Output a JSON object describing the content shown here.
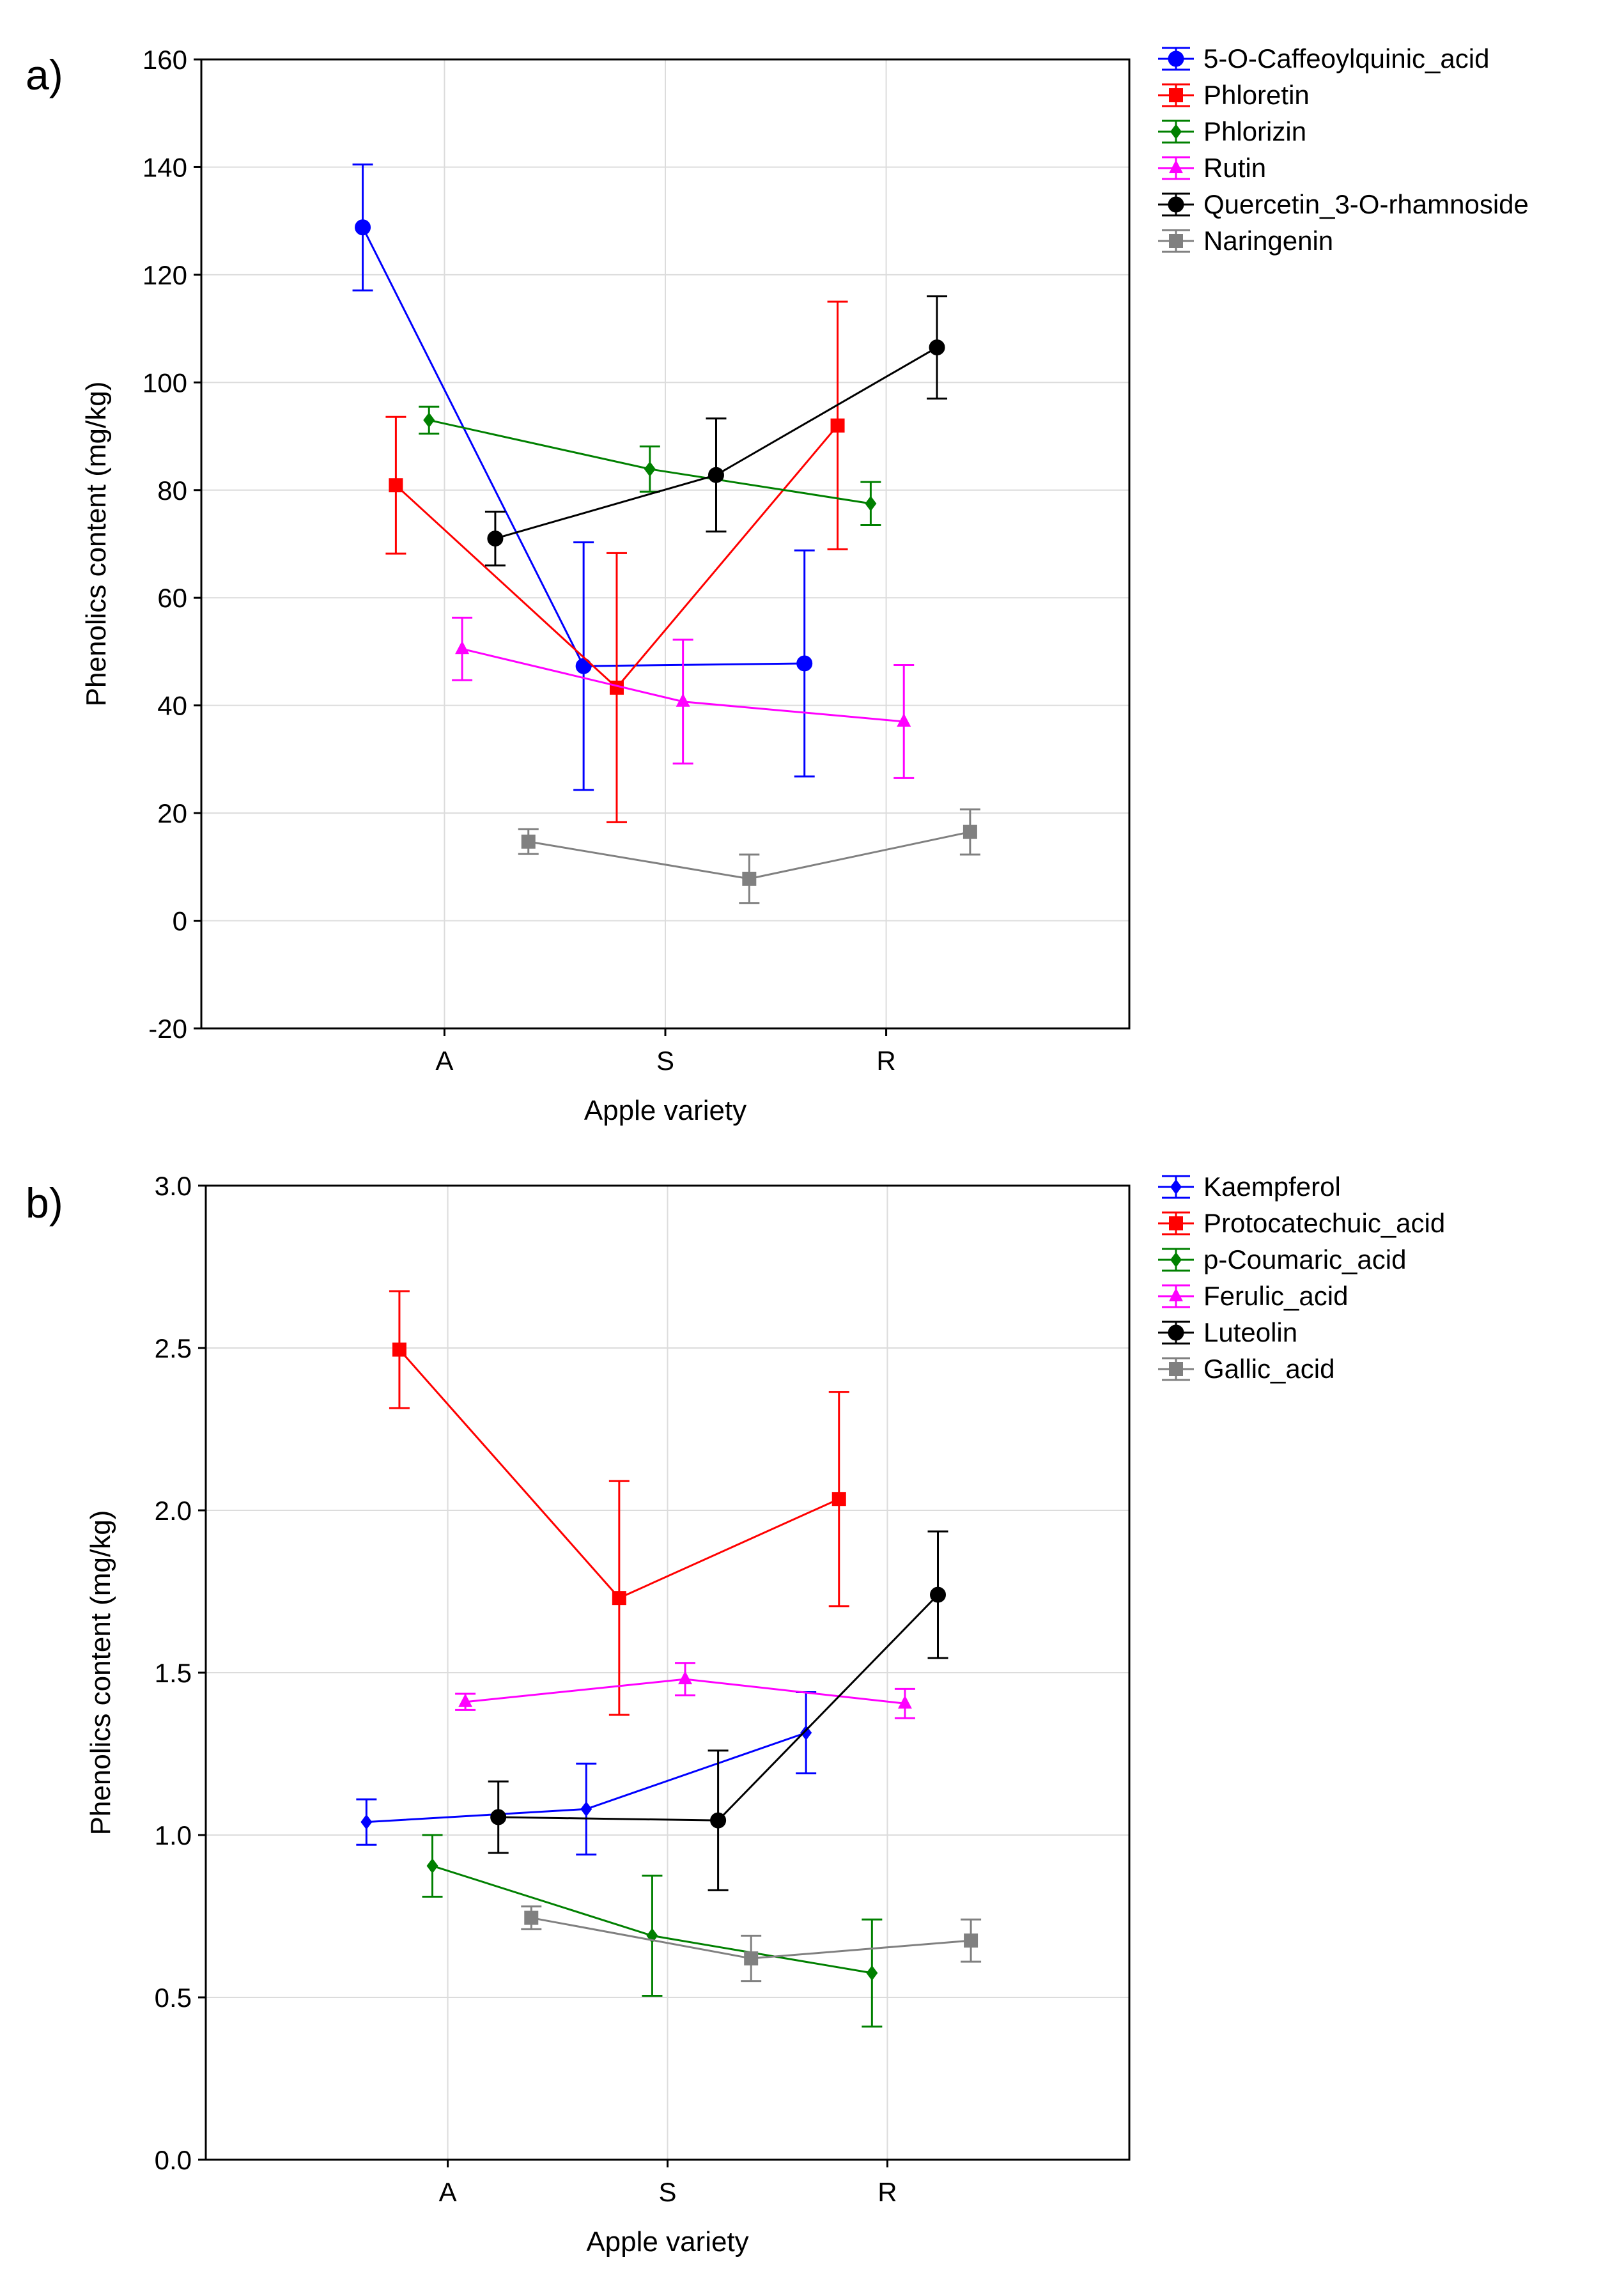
{
  "chart_data": [
    {
      "type": "line",
      "panel_label": "a)",
      "xlabel": "Apple variety",
      "ylabel": "Phenolics content (mg/kg)",
      "categories": [
        "A",
        "S",
        "R"
      ],
      "ylim": [
        -20,
        160
      ],
      "yticks": [
        -20,
        0,
        20,
        40,
        60,
        80,
        100,
        120,
        140,
        160
      ],
      "ytick_labels": [
        "-20",
        "0",
        "20",
        "40",
        "60",
        "80",
        "100",
        "120",
        "140",
        "160"
      ],
      "grid": true,
      "legend_position": "right-top",
      "series": [
        {
          "name": "5-O-Caffeoylquinic_acid",
          "color": "#0000ff",
          "marker": "circle",
          "offset": -0.37,
          "values": [
            128.8,
            47.3,
            47.8
          ],
          "err": [
            11.7,
            23.0,
            21.0
          ]
        },
        {
          "name": "Phloretin",
          "color": "#ff0000",
          "marker": "square",
          "offset": -0.22,
          "values": [
            80.9,
            43.3,
            92.0
          ],
          "err": [
            12.7,
            25.0,
            23.0
          ]
        },
        {
          "name": "Phlorizin",
          "color": "#008000",
          "marker": "diamond",
          "offset": -0.07,
          "values": [
            93.0,
            83.9,
            77.5
          ],
          "err": [
            2.5,
            4.2,
            4.0
          ]
        },
        {
          "name": "Rutin",
          "color": "#ff00ff",
          "marker": "triangle",
          "offset": 0.08,
          "values": [
            50.5,
            40.7,
            37.0
          ],
          "err": [
            5.8,
            11.5,
            10.5
          ]
        },
        {
          "name": "Quercetin_3-O-rhamnoside",
          "color": "#000000",
          "marker": "circle",
          "offset": 0.23,
          "values": [
            71.0,
            82.8,
            106.5
          ],
          "err": [
            5.0,
            10.5,
            9.5
          ]
        },
        {
          "name": "Naringenin",
          "color": "#808080",
          "marker": "square",
          "offset": 0.38,
          "values": [
            14.7,
            7.8,
            16.5
          ],
          "err": [
            2.3,
            4.5,
            4.2
          ]
        }
      ]
    },
    {
      "type": "line",
      "panel_label": "b)",
      "xlabel": "Apple variety",
      "ylabel": "Phenolics content (mg/kg)",
      "categories": [
        "A",
        "S",
        "R"
      ],
      "ylim": [
        0,
        3
      ],
      "yticks": [
        0,
        0.5,
        1,
        1.5,
        2,
        2.5,
        3
      ],
      "ytick_labels": [
        "0.0",
        "0.5",
        "1.0",
        "1.5",
        "2.0",
        "2.5",
        "3.0"
      ],
      "grid": true,
      "legend_position": "right-top",
      "series": [
        {
          "name": "Kaempferol",
          "color": "#0000ff",
          "marker": "diamond",
          "offset": -0.37,
          "values": [
            1.04,
            1.08,
            1.315
          ],
          "err": [
            0.07,
            0.14,
            0.125
          ]
        },
        {
          "name": "Protocatechuic_acid",
          "color": "#ff0000",
          "marker": "square",
          "offset": -0.22,
          "values": [
            2.495,
            1.73,
            2.035
          ],
          "err": [
            0.18,
            0.36,
            0.33
          ]
        },
        {
          "name": "p-Coumaric_acid",
          "color": "#008000",
          "marker": "diamond",
          "offset": -0.07,
          "values": [
            0.905,
            0.69,
            0.575
          ],
          "err": [
            0.095,
            0.185,
            0.165
          ]
        },
        {
          "name": "Ferulic_acid",
          "color": "#ff00ff",
          "marker": "triangle",
          "offset": 0.08,
          "values": [
            1.41,
            1.48,
            1.405
          ],
          "err": [
            0.025,
            0.05,
            0.045
          ]
        },
        {
          "name": "Luteolin",
          "color": "#000000",
          "marker": "circle",
          "offset": 0.23,
          "values": [
            1.055,
            1.045,
            1.74
          ],
          "err": [
            0.11,
            0.215,
            0.195
          ]
        },
        {
          "name": "Gallic_acid",
          "color": "#808080",
          "marker": "square",
          "offset": 0.38,
          "values": [
            0.745,
            0.62,
            0.675
          ],
          "err": [
            0.035,
            0.07,
            0.065
          ]
        }
      ]
    }
  ]
}
